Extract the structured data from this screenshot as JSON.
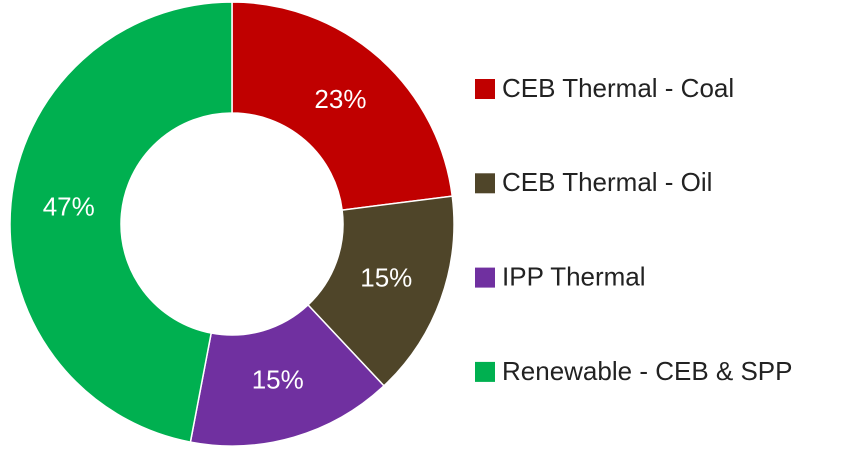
{
  "chart_data": {
    "type": "donut",
    "categories": [
      "CEB Thermal - Coal",
      "CEB Thermal - Oil",
      "IPP Thermal",
      "Renewable - CEB & SPP"
    ],
    "values": [
      23,
      15,
      15,
      47
    ],
    "value_labels": [
      "23%",
      "15%",
      "15%",
      "47%"
    ],
    "colors": [
      "#c00000",
      "#4f4529",
      "#7030a0",
      "#00b050"
    ],
    "legend": "right"
  }
}
